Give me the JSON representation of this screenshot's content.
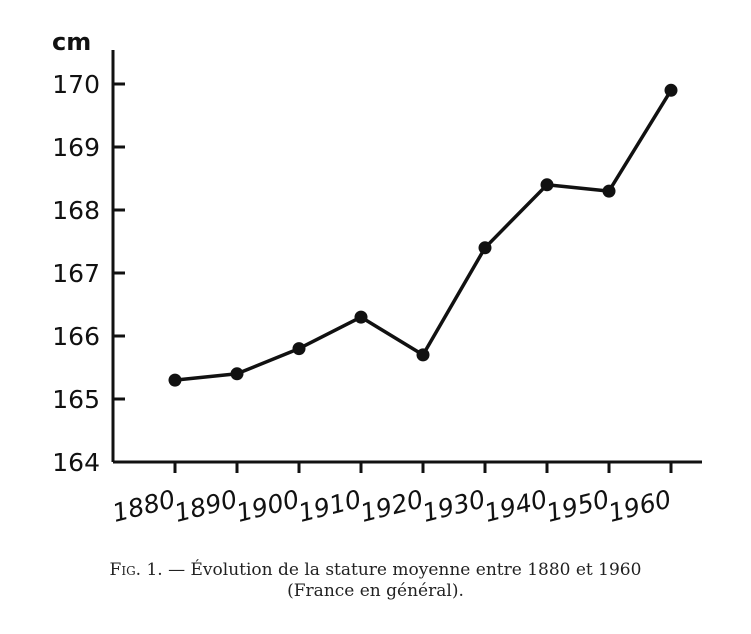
{
  "chart_data": {
    "type": "line",
    "x": [
      "1880",
      "1890",
      "1900",
      "1910",
      "1920",
      "1930",
      "1940",
      "1950",
      "1960"
    ],
    "values": [
      165.3,
      165.4,
      165.8,
      166.3,
      165.7,
      167.4,
      168.4,
      168.3,
      169.9
    ],
    "ylabel": "cm",
    "ylim": [
      164,
      170
    ],
    "yticks": [
      "164",
      "165",
      "166",
      "167",
      "168",
      "169",
      "170"
    ],
    "grid": false,
    "legend": "none"
  },
  "caption": {
    "prefix": "Fig. 1.",
    "line1": " — Évolution de la stature moyenne entre 1880 et 1960",
    "line2": "(France en général)."
  }
}
